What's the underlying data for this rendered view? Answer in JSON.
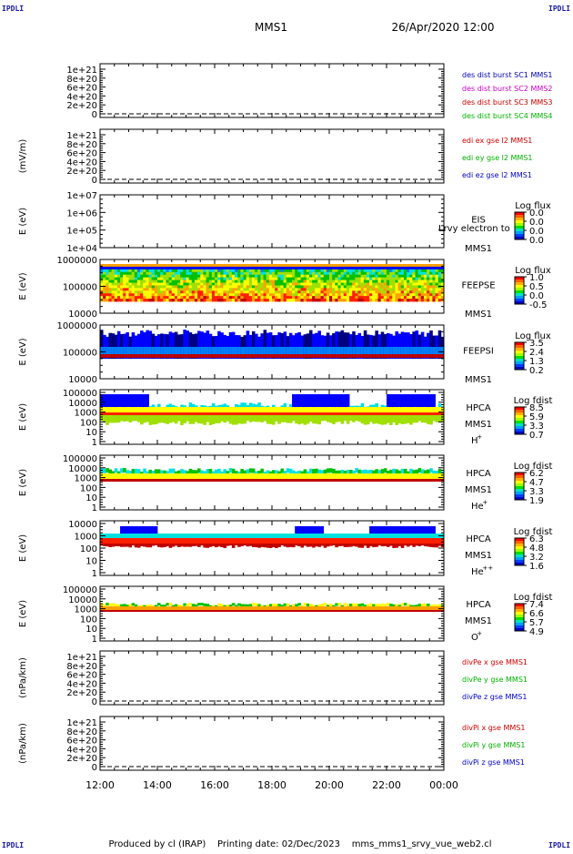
{
  "header": {
    "corner_label": "IPDLI",
    "title": "MMS1",
    "date": "26/Apr/2020 12:00"
  },
  "footer": {
    "text": "Produced by cl (IRAP)    Printing date: 02/Dec/2023    mms_mms1_srvy_vue_web2.cl"
  },
  "colors": {
    "spec": [
      "#000080",
      "#0000ff",
      "#0080ff",
      "#00e0e0",
      "#00c000",
      "#a0e000",
      "#ffff00",
      "#ffa000",
      "#ff2000",
      "#c00000"
    ],
    "mms1": "#0000b4",
    "mms2": "#c800c8",
    "mms3": "#c80000",
    "mms4": "#00b400",
    "red": "#d00000",
    "green": "#00b000",
    "blue": "#0000c8"
  },
  "chart_data": {
    "type": "panels",
    "time_axis": {
      "start": "12:00",
      "end": "00:00",
      "tick_labels": [
        "12:00",
        "14:00",
        "16:00",
        "18:00",
        "20:00",
        "22:00",
        "00:00"
      ]
    },
    "panels": [
      {
        "kind": "line",
        "ylabel": "",
        "ytick_labels": [
          "1e+21",
          "8e+20",
          "6e+20",
          "4e+20",
          "2e+20",
          "0"
        ],
        "legend": [
          {
            "text": "des dist burst SC1 MMS1",
            "color_key": "mms1"
          },
          {
            "text": "des dist burst SC2 MMS2",
            "color_key": "mms2"
          },
          {
            "text": "des dist burst SC3 MMS3",
            "color_key": "mms3"
          },
          {
            "text": "des dist burst SC4 MMS4",
            "color_key": "mms4"
          }
        ]
      },
      {
        "kind": "line",
        "ylabel": "(mV/m)",
        "ytick_labels": [
          "1e+21",
          "8e+20",
          "6e+20",
          "4e+20",
          "2e+20",
          "0"
        ],
        "legend": [
          {
            "text": "edi ex gse l2 MMS1",
            "color_key": "red"
          },
          {
            "text": "edi ey gse l2 MMS1",
            "color_key": "green"
          },
          {
            "text": "edi ez gse l2 MMS1",
            "color_key": "blue"
          }
        ]
      },
      {
        "kind": "spec",
        "ylabel": "E (eV)",
        "ytick_labels": [
          "1e+07",
          "1e+06",
          "1e+05",
          "1e+04"
        ],
        "instrument": [
          "EIS",
          "MMS1"
        ],
        "overlay_text": "Lrvy electron to",
        "cbar_title": "Log flux",
        "cbar_ticks": [
          "0.0",
          "0.0",
          "0.0",
          "0.0"
        ],
        "level": "empty"
      },
      {
        "kind": "spec",
        "ylabel": "E (eV)",
        "ytick_labels": [
          "1000000",
          "100000",
          "10000"
        ],
        "instrument": [
          "FEEPSE",
          "MMS1"
        ],
        "cbar_title": "Log flux",
        "cbar_ticks": [
          "1.0",
          "0.5",
          "0.0",
          "-0.5"
        ],
        "level": "feeps_e"
      },
      {
        "kind": "spec",
        "ylabel": "E (eV)",
        "ytick_labels": [
          "1000000",
          "100000",
          "10000"
        ],
        "instrument": [
          "FEEPSI",
          "MMS1"
        ],
        "cbar_title": "Log flux",
        "cbar_ticks": [
          "3.5",
          "2.4",
          "1.3",
          "0.2"
        ],
        "level": "feeps_i"
      },
      {
        "kind": "spec",
        "ylabel": "E (eV)",
        "ytick_labels": [
          "100000",
          "10000",
          "1000",
          "100",
          "10",
          "1"
        ],
        "instrument": [
          "HPCA",
          "MMS1"
        ],
        "species": "H",
        "charge": "+",
        "cbar_title": "Log fdist",
        "cbar_ticks": [
          "8.5",
          "5.9",
          "3.3",
          "0.7"
        ],
        "level": "hpca_h"
      },
      {
        "kind": "spec",
        "ylabel": "E (eV)",
        "ytick_labels": [
          "100000",
          "10000",
          "1000",
          "100",
          "10",
          "1"
        ],
        "instrument": [
          "HPCA",
          "MMS1"
        ],
        "species": "He",
        "charge": "+",
        "cbar_title": "Log fdist",
        "cbar_ticks": [
          "6.2",
          "4.7",
          "3.3",
          "1.9"
        ],
        "level": "hpca_he1"
      },
      {
        "kind": "spec",
        "ylabel": "E (eV)",
        "ytick_labels": [
          "10000",
          "1000",
          "100",
          "10",
          "1"
        ],
        "instrument": [
          "HPCA",
          "MMS1"
        ],
        "species": "He",
        "charge": "++",
        "cbar_title": "Log fdist",
        "cbar_ticks": [
          "6.3",
          "4.8",
          "3.2",
          "1.6"
        ],
        "level": "hpca_he2"
      },
      {
        "kind": "spec",
        "ylabel": "E (eV)",
        "ytick_labels": [
          "100000",
          "10000",
          "1000",
          "100",
          "10",
          "1"
        ],
        "instrument": [
          "HPCA",
          "MMS1"
        ],
        "species": "O",
        "charge": "+",
        "cbar_title": "Log fdist",
        "cbar_ticks": [
          "7.4",
          "6.6",
          "5.7",
          "4.9"
        ],
        "level": "hpca_o"
      },
      {
        "kind": "line",
        "ylabel": "(nPa/km)",
        "ytick_labels": [
          "1e+21",
          "8e+20",
          "6e+20",
          "4e+20",
          "2e+20",
          "0"
        ],
        "legend": [
          {
            "text": "divPe x gse MMS1",
            "color_key": "red"
          },
          {
            "text": "divPe y gse MMS1",
            "color_key": "green"
          },
          {
            "text": "divPe z gse MMS1",
            "color_key": "blue"
          }
        ]
      },
      {
        "kind": "line",
        "ylabel": "(nPa/km)",
        "ytick_labels": [
          "1e+21",
          "8e+20",
          "6e+20",
          "4e+20",
          "2e+20",
          "0"
        ],
        "legend": [
          {
            "text": "divPi x gse MMS1",
            "color_key": "red"
          },
          {
            "text": "divPi y gse MMS1",
            "color_key": "green"
          },
          {
            "text": "divPi z gse MMS1",
            "color_key": "blue"
          }
        ]
      }
    ]
  }
}
